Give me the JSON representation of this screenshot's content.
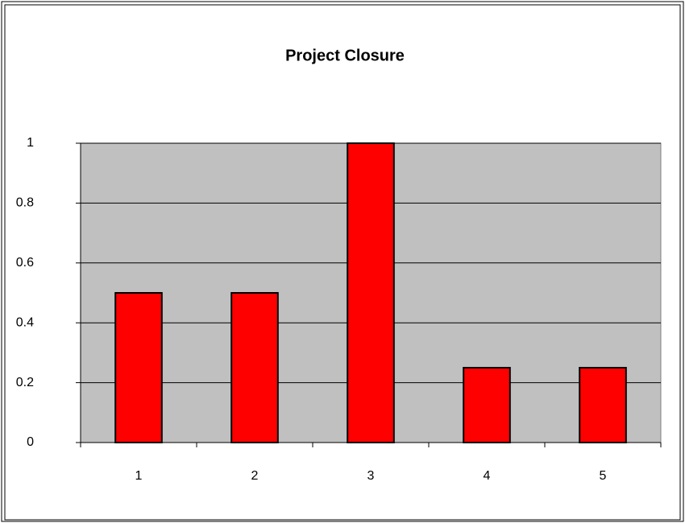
{
  "chart_data": {
    "type": "bar",
    "title": "Project Closure",
    "categories": [
      "1",
      "2",
      "3",
      "4",
      "5"
    ],
    "values": [
      0.5,
      0.5,
      1,
      0.25,
      0.25
    ],
    "color": "#ff0000",
    "ylim": [
      0,
      1
    ],
    "yticks": [
      0,
      0.2,
      0.4,
      0.6,
      0.8,
      1
    ],
    "grid": true
  }
}
